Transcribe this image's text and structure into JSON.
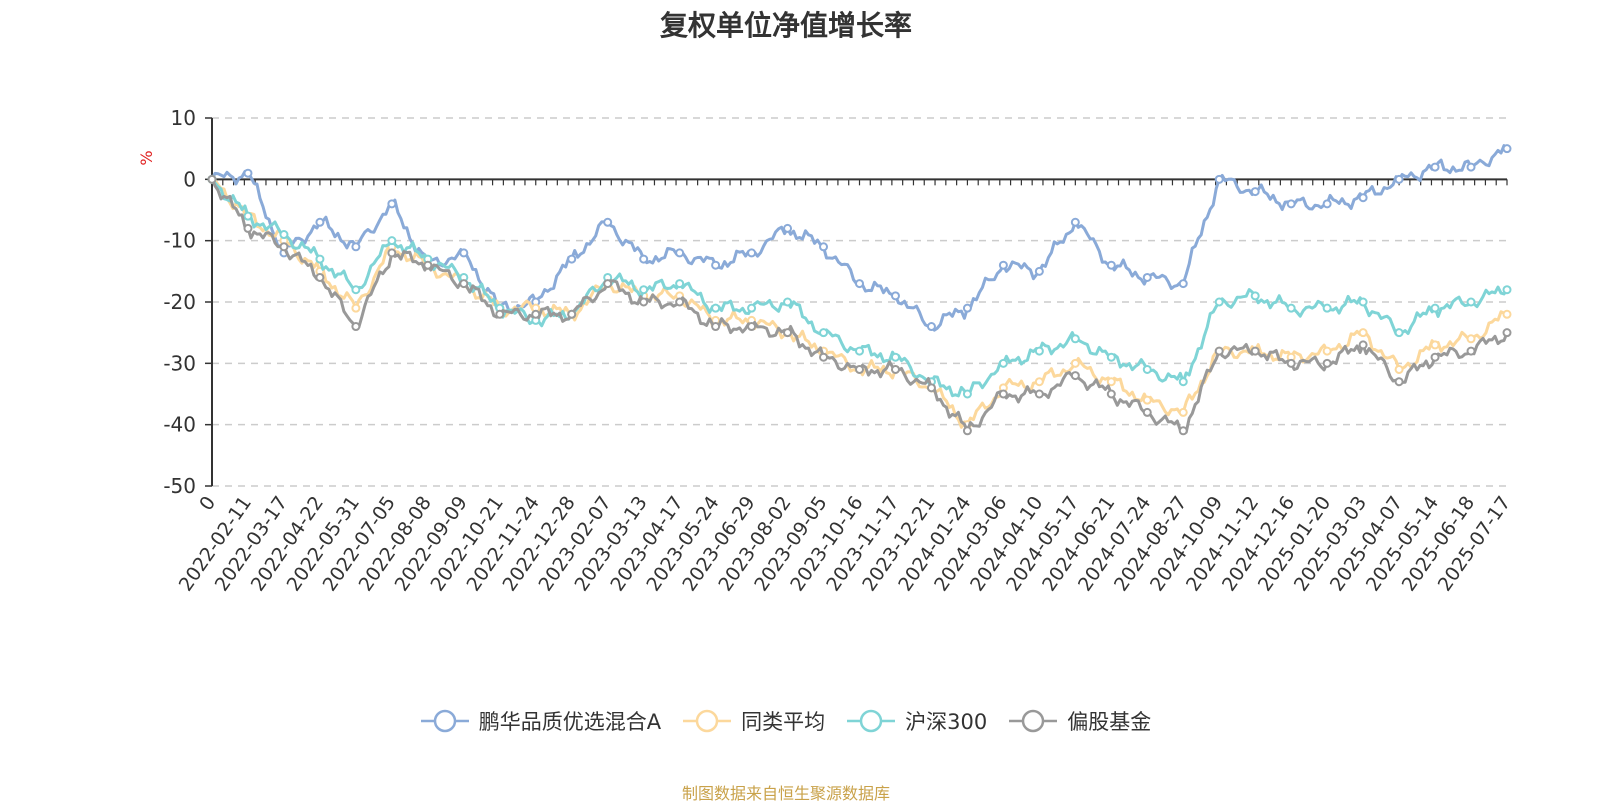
{
  "title": "复权单位净值增长率",
  "source": "制图数据来自恒生聚源数据库",
  "chart_data": {
    "type": "line",
    "title": "复权单位净值增长率",
    "ylabel": "%",
    "ylim": [
      -50,
      10
    ],
    "yticks": [
      10,
      0,
      -10,
      -20,
      -30,
      -40,
      -50
    ],
    "grid": true,
    "legend_position": "bottom",
    "x_axis_origin_label": "0",
    "x_tick_labels": [
      "2022-02-11",
      "2022-03-17",
      "2022-04-22",
      "2022-05-31",
      "2022-07-05",
      "2022-08-08",
      "2022-09-09",
      "2022-10-21",
      "2022-11-24",
      "2022-12-28",
      "2023-02-07",
      "2023-03-13",
      "2023-04-17",
      "2023-05-24",
      "2023-06-29",
      "2023-08-02",
      "2023-09-05",
      "2023-10-16",
      "2023-11-17",
      "2023-12-21",
      "2024-01-24",
      "2024-03-06",
      "2024-04-10",
      "2024-05-17",
      "2024-06-21",
      "2024-07-24",
      "2024-08-27",
      "2024-10-09",
      "2024-11-12",
      "2024-12-16",
      "2025-01-20",
      "2025-03-03",
      "2025-04-07",
      "2025-05-14",
      "2025-06-18",
      "2025-07-17"
    ],
    "x": [
      "2022-01-07",
      "2022-02-11",
      "2022-03-17",
      "2022-04-22",
      "2022-05-31",
      "2022-07-05",
      "2022-08-08",
      "2022-09-09",
      "2022-10-21",
      "2022-11-24",
      "2022-12-28",
      "2023-02-07",
      "2023-03-13",
      "2023-04-17",
      "2023-05-24",
      "2023-06-29",
      "2023-08-02",
      "2023-09-05",
      "2023-10-16",
      "2023-11-17",
      "2023-12-21",
      "2024-01-24",
      "2024-03-06",
      "2024-04-10",
      "2024-05-17",
      "2024-06-21",
      "2024-07-24",
      "2024-08-27",
      "2024-10-09",
      "2024-11-12",
      "2024-12-16",
      "2025-01-20",
      "2025-03-03",
      "2025-04-07",
      "2025-05-14",
      "2025-06-18",
      "2025-07-17"
    ],
    "series": [
      {
        "name": "鹏华品质优选混合A",
        "color": "#8aaad8",
        "values": [
          0,
          1,
          -12,
          -7,
          -11,
          -4,
          -14,
          -12,
          -21,
          -20,
          -13,
          -7,
          -13,
          -12,
          -14,
          -12,
          -8,
          -11,
          -17,
          -19,
          -24,
          -21,
          -14,
          -15,
          -7,
          -14,
          -16,
          -17,
          0,
          -2,
          -4,
          -4,
          -3,
          0,
          2,
          2,
          5
        ]
      },
      {
        "name": "同类平均",
        "color": "#fcd89c",
        "values": [
          0,
          -6,
          -10,
          -15,
          -21,
          -11,
          -14,
          -17,
          -21,
          -21,
          -22,
          -17,
          -19,
          -19,
          -23,
          -23,
          -25,
          -28,
          -31,
          -31,
          -34,
          -40,
          -34,
          -33,
          -30,
          -33,
          -36,
          -38,
          -28,
          -28,
          -29,
          -28,
          -25,
          -31,
          -27,
          -26,
          -22
        ]
      },
      {
        "name": "沪深300",
        "color": "#7fd4d6",
        "values": [
          0,
          -6,
          -9,
          -13,
          -18,
          -10,
          -13,
          -16,
          -21,
          -23,
          -22,
          -16,
          -18,
          -17,
          -21,
          -21,
          -20,
          -25,
          -28,
          -29,
          -33,
          -35,
          -30,
          -28,
          -26,
          -29,
          -31,
          -33,
          -20,
          -19,
          -21,
          -21,
          -20,
          -25,
          -21,
          -20,
          -18
        ]
      },
      {
        "name": "偏股基金",
        "color": "#999999",
        "values": [
          0,
          -8,
          -11,
          -16,
          -24,
          -12,
          -14,
          -17,
          -22,
          -22,
          -22,
          -17,
          -20,
          -20,
          -24,
          -24,
          -25,
          -29,
          -31,
          -31,
          -34,
          -41,
          -35,
          -35,
          -32,
          -35,
          -38,
          -41,
          -28,
          -28,
          -30,
          -30,
          -27,
          -33,
          -29,
          -28,
          -25
        ]
      }
    ]
  }
}
